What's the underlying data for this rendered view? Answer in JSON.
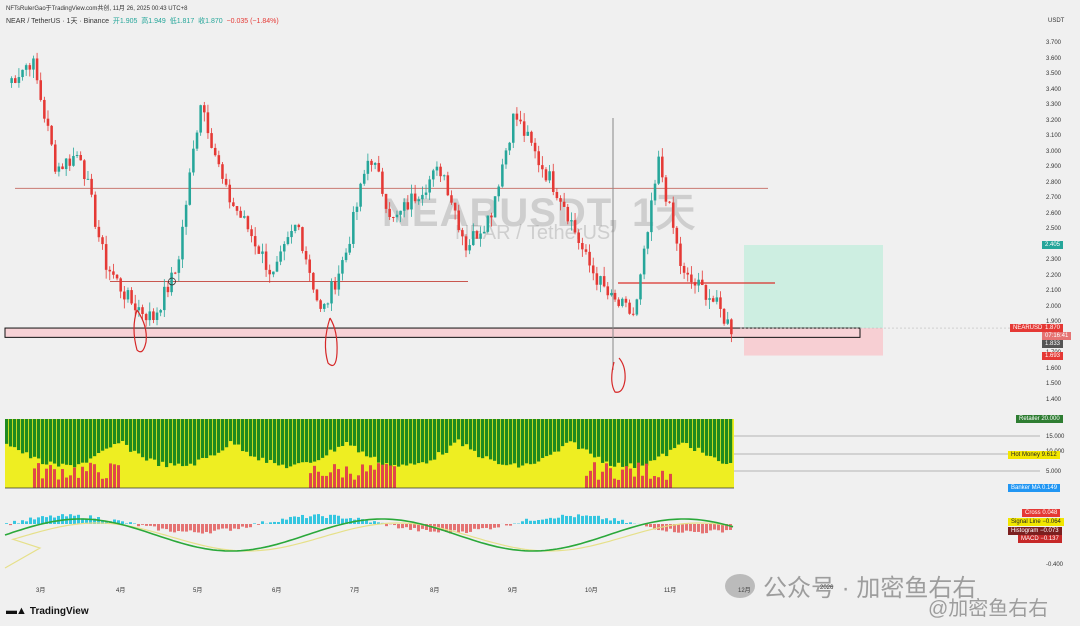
{
  "header": {
    "published": "NFTsRulerGao于TradingView.com共创, 11月 26, 2025 00:43 UTC+8",
    "symbol_line": "NEAR / TetherUS · 1天 · Binance",
    "open": "开1.905",
    "high": "高1.949",
    "low": "低1.817",
    "close": "收1.870",
    "change": "−0.035 (−1.84%)"
  },
  "watermark": {
    "main": "NEARUSDT, 1天",
    "sub": "NEAR / TetherUS"
  },
  "axis": {
    "unit": "USDT",
    "ticks": [
      "3.700",
      "3.600",
      "3.500",
      "3.400",
      "3.300",
      "3.200",
      "3.100",
      "3.000",
      "2.900",
      "2.800",
      "2.700",
      "2.600",
      "2.500",
      "2.400",
      "2.300",
      "2.200",
      "2.100",
      "2.000",
      "1.900",
      "1.800",
      "1.700",
      "1.600",
      "1.500",
      "1.400"
    ],
    "indicator_ticks": [
      "15.000",
      "10.000",
      "5.000",
      "-0.400"
    ]
  },
  "price_labels": {
    "take_profit": "2.405",
    "symbol": "NEARUSDT",
    "last": "1.870",
    "countdown": "07:16:41",
    "entry": "1.833",
    "stop": "1.693"
  },
  "indicator_labels": {
    "retailer": "Retailer  20.000",
    "hot_money": "Hot Money  9.612",
    "banker_ma": "Banker MA  0.149",
    "cross": "Cross  0.048",
    "signal": "Signal Line  −0.064",
    "histogram": "Histogram  −0.073",
    "macd": "MACD  −0.137"
  },
  "x_labels": [
    "3月",
    "4月",
    "5月",
    "6月",
    "7月",
    "8月",
    "9月",
    "10月",
    "11月",
    "12月",
    "2026"
  ],
  "brand": "TradingView",
  "overlay": {
    "wechat": "公众号 · 加密鱼右右",
    "handle": "@加密鱼右右"
  },
  "colors": {
    "up": "#26a69a",
    "down": "#e53935",
    "tp_zone": "#cdeee1",
    "sl_zone": "#f7cfd3"
  },
  "chart_data": {
    "type": "line",
    "title": "NEARUSDT, 1天",
    "ylabel": "USDT",
    "ylim": [
      1.4,
      3.7
    ],
    "x": [
      "3月",
      "4月",
      "5月",
      "6月",
      "7月",
      "8月",
      "9月",
      "10月",
      "11月",
      "12月"
    ],
    "series": [
      {
        "name": "NEAR / TetherUS",
        "values": [
          3.3,
          1.95,
          3.25,
          2.2,
          1.95,
          2.95,
          2.6,
          3.2,
          1.95,
          1.87
        ]
      }
    ],
    "horizontal_levels": [
      2.77,
      2.17,
      2.16
    ]
  }
}
